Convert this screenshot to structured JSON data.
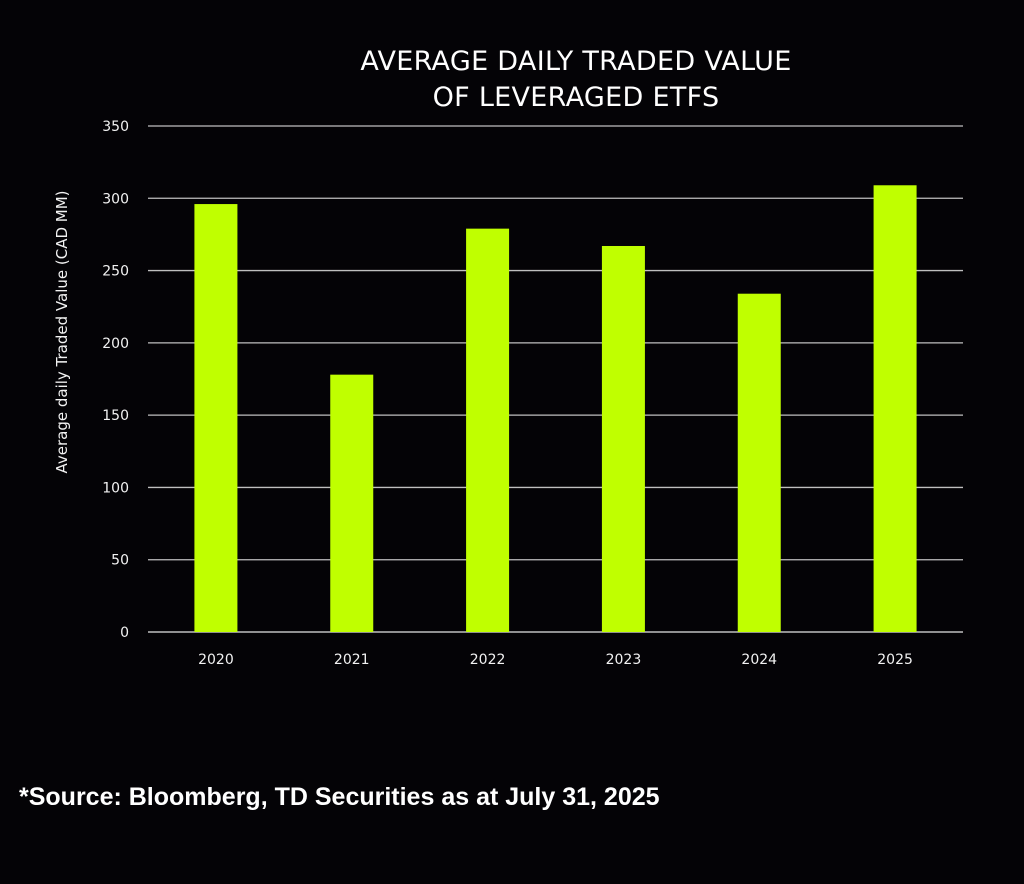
{
  "chart_data": {
    "type": "bar",
    "title": "AVERAGE DAILY TRADED VALUE OF LEVERAGED ETFS",
    "title_lines": [
      "AVERAGE DAILY TRADED VALUE",
      "OF LEVERAGED ETFS"
    ],
    "xlabel": "",
    "ylabel": "Average daily Traded Value (CAD MM)",
    "categories": [
      "2020",
      "2021",
      "2022",
      "2023",
      "2024",
      "2025"
    ],
    "values": [
      296,
      178,
      279,
      267,
      234,
      309
    ],
    "ylim": [
      0,
      350
    ],
    "yticks": [
      0,
      50,
      100,
      150,
      200,
      250,
      300,
      350
    ],
    "ytick_labels": [
      "0",
      "50",
      "100",
      "150",
      "200",
      "250",
      "300",
      "350"
    ],
    "grid": true,
    "bar_color": "#c0ff00",
    "grid_color": "#bfbfbf"
  },
  "footer": {
    "source": "*Source: Bloomberg, TD Securities as at July 31, 2025"
  }
}
